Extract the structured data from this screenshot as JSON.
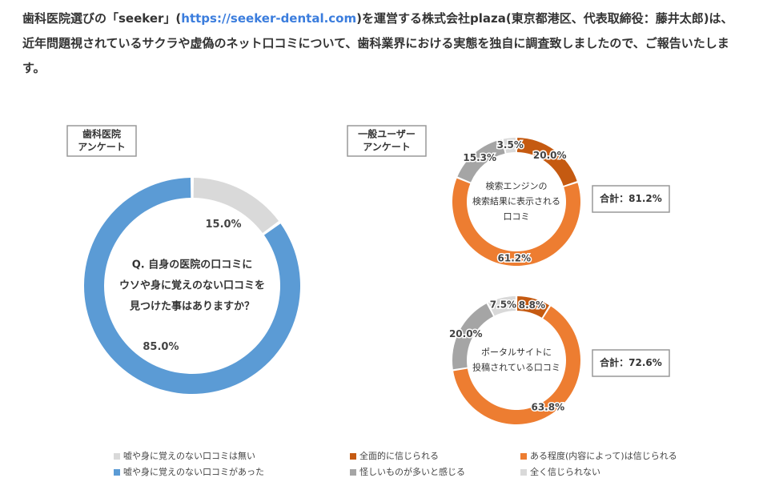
{
  "intro": {
    "before": "歯科医院選びの「seeker」(",
    "link": "https://seeker-dental.com",
    "after": ")を運営する株式会社plaza(東京都港区、代表取締役：藤井太郎)は、近年問題視されているサクラや虚偽のネット口コミについて、歯科業界における実態を独自に調査致しましたので、ご報告いたします。"
  },
  "chart_data": [
    {
      "type": "donut",
      "box_label": [
        "歯科医院",
        "アンケート"
      ],
      "center_text": [
        "Q. 自身の医院の口コミに",
        "ウソや身に覚えのない口コミを",
        "見つけた事はありますか？"
      ],
      "categories": [
        "嘘や身に覚えのない口コミは無い",
        "嘘や身に覚えのない口コミがあった"
      ],
      "values": [
        15.0,
        85.0
      ],
      "value_labels": [
        "15.0%",
        "85.0%"
      ],
      "colors": [
        "#d9d9d9",
        "#5b9bd5"
      ]
    },
    {
      "type": "donut",
      "box_label": [
        "一般ユーザー",
        "アンケート"
      ],
      "center_text": [
        "検索エンジンの",
        "検索結果に表示される",
        "口コミ"
      ],
      "categories": [
        "全面的に信じられる",
        "ある程度(内容によって)は信じられる",
        "怪しいものが多いと感じる",
        "全く信じられない"
      ],
      "values": [
        20.0,
        61.2,
        15.3,
        3.5
      ],
      "value_labels": [
        "20.0%",
        "61.2%",
        "15.3%",
        "3.5%"
      ],
      "colors": [
        "#c55a11",
        "#ed7d31",
        "#a5a5a5",
        "#d9d9d9"
      ],
      "total_label": "合計：81.2%"
    },
    {
      "type": "donut",
      "center_text": [
        "ポータルサイトに",
        "投稿されている口コミ"
      ],
      "values": [
        8.8,
        63.8,
        20.0,
        7.5
      ],
      "value_labels": [
        "8.8%",
        "63.8%",
        "20.0%",
        "7.5%"
      ],
      "colors": [
        "#c55a11",
        "#ed7d31",
        "#a5a5a5",
        "#d9d9d9"
      ],
      "total_label": "合計：72.6%"
    }
  ]
}
